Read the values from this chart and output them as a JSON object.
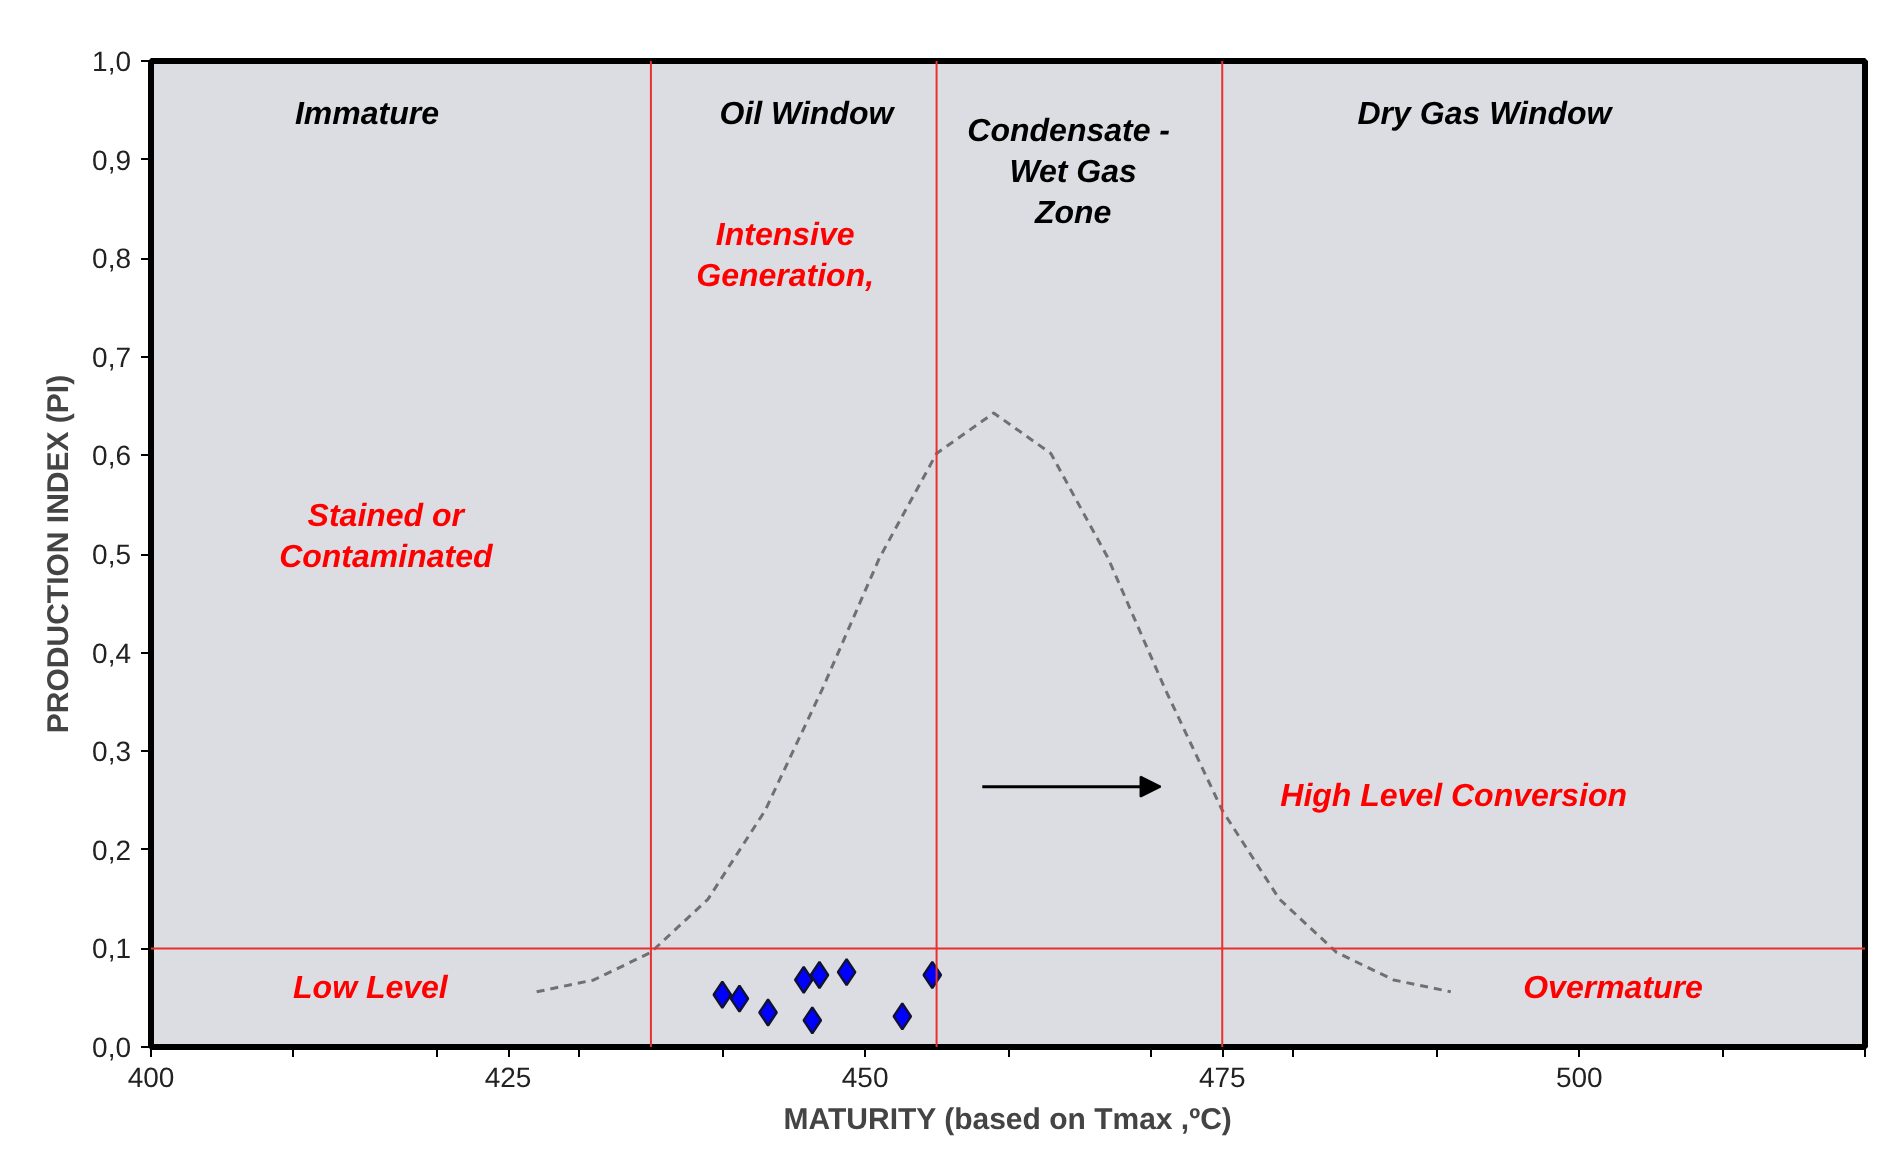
{
  "chart_data": {
    "type": "scatter",
    "xlabel": "MATURITY (based on Tmax ,ºC)",
    "ylabel": "PRODUCTION INDEX (PI)",
    "xlim": [
      400,
      520
    ],
    "ylim": [
      0,
      1
    ],
    "xticks": [
      400,
      {
        "value": 410,
        "label": null
      },
      {
        "value": 420,
        "label": null
      },
      425,
      {
        "value": 430,
        "label": null
      },
      {
        "value": 440,
        "label": null
      },
      450,
      {
        "value": 460,
        "label": null
      },
      {
        "value": 470,
        "label": null
      },
      475,
      {
        "value": 480,
        "label": null
      },
      {
        "value": 490,
        "label": null
      },
      500,
      {
        "value": 510,
        "label": null
      },
      {
        "value": 520,
        "label": null
      }
    ],
    "yticks": [
      {
        "value": 0,
        "label": "0,0"
      },
      {
        "value": 0.1,
        "label": "0,1"
      },
      {
        "value": 0.2,
        "label": "0,2"
      },
      {
        "value": 0.3,
        "label": "0,3"
      },
      {
        "value": 0.4,
        "label": "0,4"
      },
      {
        "value": 0.5,
        "label": "0,5"
      },
      {
        "value": 0.6,
        "label": "0,6"
      },
      {
        "value": 0.7,
        "label": "0,7"
      },
      {
        "value": 0.8,
        "label": "0,8"
      },
      {
        "value": 0.9,
        "label": "0,9"
      },
      {
        "value": 1,
        "label": "1,0"
      }
    ],
    "grid": false,
    "series": [
      {
        "color": "#0000ff",
        "marker": "diamond",
        "x": [
          440.0,
          441.2,
          443.2,
          445.7,
          446.8,
          446.3,
          448.7,
          452.6,
          454.7
        ],
        "values": [
          0.053,
          0.049,
          0.035,
          0.068,
          0.073,
          0.027,
          0.076,
          0.031,
          0.073
        ]
      },
      {
        "type": "line",
        "color": "#707070",
        "line_style": "dashed",
        "marker": "none",
        "x": [
          427,
          431,
          435,
          439,
          443,
          447,
          451,
          455,
          459,
          463,
          467,
          471,
          475,
          479,
          483,
          487,
          491
        ],
        "values": [
          0.056,
          0.068,
          0.096,
          0.15,
          0.24,
          0.363,
          0.496,
          0.602,
          0.643,
          0.602,
          0.496,
          0.363,
          0.24,
          0.15,
          0.096,
          0.068,
          0.056
        ]
      }
    ],
    "ref_lines": [
      {
        "axis": "x",
        "value": 435,
        "color": "#e8302e"
      },
      {
        "axis": "x",
        "value": 455,
        "color": "#e8302e"
      },
      {
        "axis": "x",
        "value": 475,
        "color": "#e8302e"
      },
      {
        "axis": "y",
        "value": 0.1,
        "color": "#e8302e"
      }
    ],
    "annotations": [
      "Immature",
      "Oil  Window",
      "Condensate  -\nWet Gas\nZone",
      "Dry Gas Window",
      "Intensive\nGeneration,",
      "Stained or\nContaminated",
      "High Level Conversion",
      "Low Level",
      "Overmature"
    ]
  }
}
